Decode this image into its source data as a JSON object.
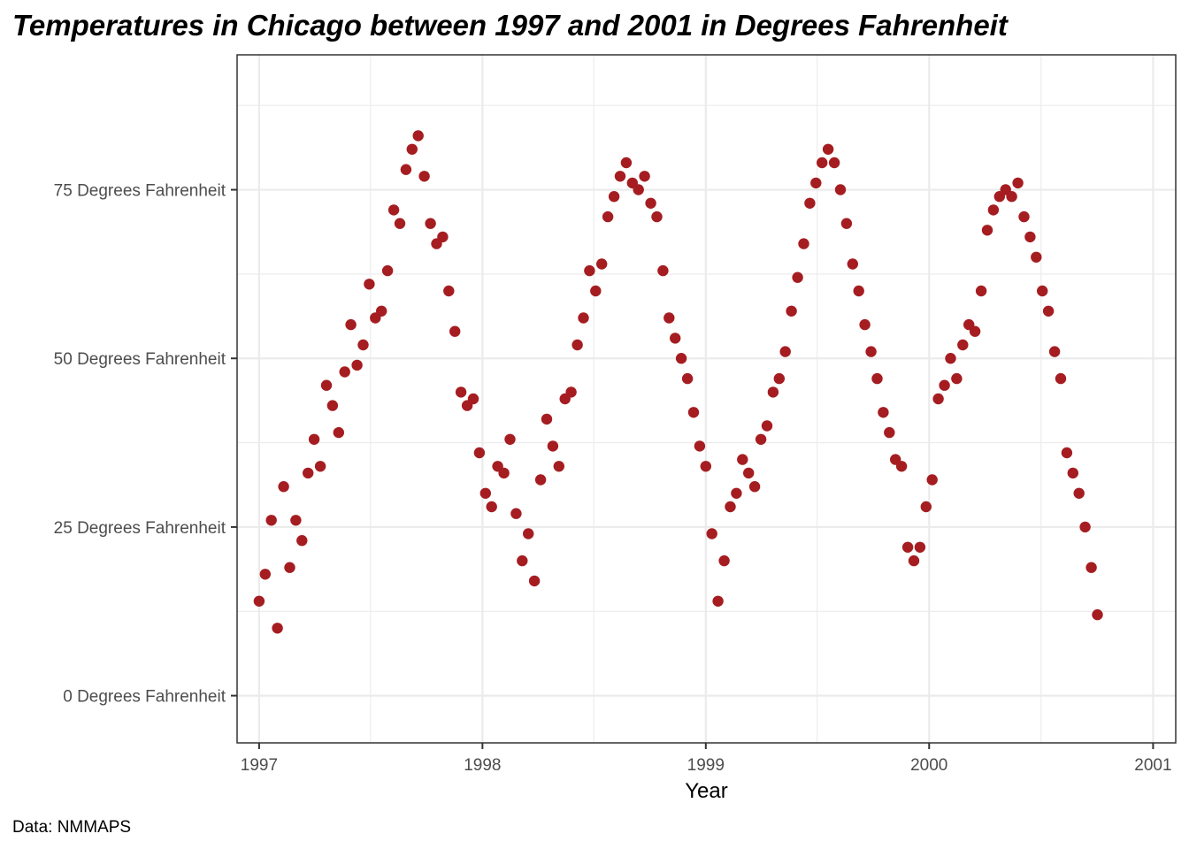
{
  "caption": "Data: NMMAPS",
  "chart_data": {
    "type": "scatter",
    "title": "Temperatures in Chicago between 1997 and 2001 in Degrees Fahrenheit",
    "xlabel": "Year",
    "ylabel": "",
    "x_ticks": [
      "1997",
      "1998",
      "1999",
      "2000",
      "2001"
    ],
    "y_ticks": [
      {
        "value": 0,
        "label": "0 Degrees Fahrenheit"
      },
      {
        "value": 25,
        "label": "25 Degrees Fahrenheit"
      },
      {
        "value": 50,
        "label": "50 Degrees Fahrenheit"
      },
      {
        "value": 75,
        "label": "75 Degrees Fahrenheit"
      }
    ],
    "xlim": [
      "1996-11-26",
      "2001-02-07"
    ],
    "ylim": [
      -7,
      95
    ],
    "grid": true,
    "point_color": "#a51d21",
    "series": [
      {
        "x_start": "1997-01-01",
        "x_step_days": 10,
        "values": [
          14,
          18,
          26,
          10,
          31,
          19,
          26,
          23,
          33,
          38,
          34,
          46,
          43,
          39,
          48,
          55,
          49,
          52,
          61,
          56,
          57,
          63,
          72,
          70,
          78,
          81,
          83,
          77,
          70,
          67,
          68,
          60,
          54,
          45,
          43,
          44,
          36,
          30,
          28,
          34,
          33,
          38,
          27,
          20,
          24,
          17,
          32,
          41,
          37,
          34,
          44,
          45,
          52,
          56,
          63,
          60,
          64,
          71,
          74,
          77,
          79,
          76,
          75,
          77,
          73,
          71,
          63,
          56,
          53,
          50,
          47,
          42,
          37,
          34,
          24,
          14,
          20,
          28,
          30,
          35,
          33,
          31,
          38,
          40,
          45,
          47,
          51,
          57,
          62,
          67,
          73,
          76,
          79,
          81,
          79,
          75,
          70,
          64,
          60,
          55,
          51,
          47,
          42,
          39,
          35,
          34,
          22,
          20,
          22,
          28,
          32,
          44,
          46,
          50,
          47,
          52,
          55,
          54,
          60,
          69,
          72,
          74,
          75,
          74,
          76,
          71,
          68,
          65,
          60,
          57,
          51,
          47,
          36,
          33,
          30,
          25,
          19,
          12
        ]
      }
    ]
  }
}
